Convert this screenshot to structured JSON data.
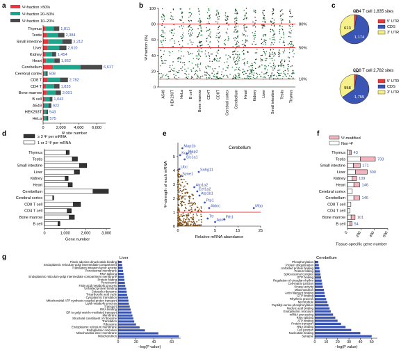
{
  "chart_data": [
    {
      "panel": "a",
      "type": "bar",
      "orientation": "horizontal",
      "stacked": true,
      "xlabel": "Ψ site number",
      "xticks": [
        0,
        2000,
        4000,
        6000
      ],
      "xlim": [
        0,
        7000
      ],
      "legend": [
        "Ψ-fraction >50%",
        "Ψ-fraction 20–50%",
        "Ψ-fraction 10–20%"
      ],
      "colors": [
        "#e8383d",
        "#1ea58c",
        "#4a4a4a"
      ],
      "categories": [
        "Thymus",
        "Testis",
        "Small intestine",
        "Liver",
        "Kidney",
        "Heart",
        "Cerebellum",
        "Cerebral cortex",
        "CD8 T",
        "CD4 T",
        "Bone marrow",
        "B cell",
        "A549",
        "HEK293T",
        "HeLa"
      ],
      "totals": [
        1811,
        2384,
        3212,
        2610,
        1454,
        1862,
        6617,
        508,
        2782,
        1835,
        2001,
        1043,
        922,
        543,
        575
      ],
      "series": [
        {
          "name": "Ψ-fraction >50%",
          "values": [
            300,
            450,
            600,
            500,
            280,
            330,
            1100,
            90,
            500,
            320,
            380,
            200,
            160,
            90,
            100
          ]
        },
        {
          "name": "Ψ-fraction 20–50%",
          "values": [
            900,
            1200,
            1550,
            1300,
            720,
            930,
            3100,
            260,
            1400,
            920,
            1000,
            520,
            460,
            280,
            290
          ]
        },
        {
          "name": "Ψ-fraction 10–20%",
          "values": [
            611,
            734,
            1062,
            810,
            454,
            602,
            2417,
            158,
            882,
            595,
            621,
            323,
            302,
            173,
            185
          ]
        }
      ]
    },
    {
      "panel": "b",
      "type": "scatter",
      "ylabel": "Ψ-fraction (%)",
      "ylim": [
        0,
        100
      ],
      "yticks": [
        0,
        20,
        40,
        60,
        80,
        100
      ],
      "reference_lines": [
        80,
        50,
        10
      ],
      "reference_labels": [
        "80%",
        "50%",
        "10%"
      ],
      "categories": [
        "A549",
        "HEK293T",
        "HeLa",
        "B cell",
        "Bone marrow",
        "CD4T",
        "CD8T",
        "Cerebral cortex",
        "Cerebellum",
        "Heart",
        "Kidney",
        "Liver",
        "Small intestine",
        "Testis",
        "Thymus"
      ]
    },
    {
      "panel": "c",
      "type": "pie",
      "charts": [
        {
          "title": "CD4 T cell 1,835 sites",
          "labels": [
            "5′ UTR",
            "CDS",
            "3′ UTR"
          ],
          "values": [
            48,
            1174,
            613
          ],
          "colors": [
            "#e8383d",
            "#3a55b4",
            "#f6ef8a"
          ]
        },
        {
          "title": "CD8 T cell 2,782 sites",
          "labels": [
            "5′ UTR",
            "CDS",
            "3′ UTR"
          ],
          "values": [
            69,
            1755,
            958
          ],
          "colors": [
            "#e8383d",
            "#3a55b4",
            "#f6ef8a"
          ]
        }
      ]
    },
    {
      "panel": "d",
      "type": "bar",
      "orientation": "horizontal",
      "stacked": true,
      "xlabel": "Gene number",
      "xticks": [
        0,
        1000,
        2000,
        3000
      ],
      "xlim": [
        0,
        3200
      ],
      "legend": [
        "≥ 3 Ψ per mRNA",
        "1 or 2 Ψ per mRNA"
      ],
      "categories": [
        "Thymus",
        "Testis",
        "Small intestine",
        "Liver",
        "Kidney",
        "Heart",
        "Cerebellum",
        "Cerebral cortex",
        "CD8 T cell",
        "CD4 T cell",
        "Bone marrow",
        "B cell"
      ],
      "series": [
        {
          "name": "1 or 2 Ψ per mRNA",
          "values": [
            1050,
            1350,
            1700,
            1450,
            1000,
            1150,
            2350,
            400,
            1400,
            1100,
            1200,
            650
          ]
        },
        {
          "name": "≥ 3 Ψ per mRNA",
          "values": [
            150,
            250,
            350,
            250,
            150,
            200,
            750,
            50,
            350,
            200,
            250,
            100
          ]
        }
      ]
    },
    {
      "panel": "e",
      "type": "scatter",
      "title": "Cerebellum",
      "xlabel": "Relative mRNA abundance",
      "ylabel": "Ψ-strength of each mRNA",
      "xticks": [
        0,
        5,
        15,
        25
      ],
      "yticks": [
        0,
        1,
        2,
        3,
        4,
        5
      ],
      "annotations": [
        {
          "label": "Map1b",
          "x": 0.6,
          "y": 5.6
        },
        {
          "label": "Kcnd2",
          "x": 0.3,
          "y": 5.1
        },
        {
          "label": "Map2",
          "x": 1.2,
          "y": 5.2
        },
        {
          "label": "Slc1a1",
          "x": 0.9,
          "y": 4.8
        },
        {
          "label": "Ubc",
          "x": 0.2,
          "y": 4.1
        },
        {
          "label": "Syne1",
          "x": 0.4,
          "y": 3.6
        },
        {
          "label": "Snhg11",
          "x": 2.8,
          "y": 3.9
        },
        {
          "label": "Atp1a2",
          "x": 2.2,
          "y": 2.8
        },
        {
          "label": "Eef1a2",
          "x": 2.6,
          "y": 2.5
        },
        {
          "label": "Atp1b1",
          "x": 2.9,
          "y": 2.2
        },
        {
          "label": "Plp1",
          "x": 3.6,
          "y": 1.7
        },
        {
          "label": "Aldoc",
          "x": 4.2,
          "y": 1.3
        },
        {
          "label": "Mbp",
          "x": 22,
          "y": 1.3
        },
        {
          "label": "Ttr",
          "x": 4.0,
          "y": 0.55
        },
        {
          "label": "Fth1",
          "x": 9.0,
          "y": 0.5
        },
        {
          "label": "Apoe",
          "x": 5.0,
          "y": 0.3
        }
      ]
    },
    {
      "panel": "f",
      "type": "bar",
      "orientation": "horizontal",
      "xlabel": "Tissue-specific gene number",
      "xticks": [
        0,
        200,
        400,
        600
      ],
      "legend": [
        "Ψ-modified",
        "Non-Ψ"
      ],
      "categories": [
        "Thymus",
        "Testis",
        "Small intestine",
        "Liver",
        "Kidney",
        "Heart",
        "Cerebral cortex",
        "Cerebellum",
        "CD8 T cell",
        "CD4 T cell",
        "Bone marrow",
        "B cell"
      ],
      "values": [
        43,
        733,
        171,
        300,
        109,
        146,
        0,
        146,
        0,
        0,
        101,
        54
      ],
      "labels": [
        "43",
        "733",
        "171",
        "300",
        "109",
        "146",
        "",
        "146",
        "",
        "",
        "101",
        "54"
      ]
    },
    {
      "panel": "g",
      "type": "bar",
      "orientation": "horizontal",
      "charts": [
        {
          "title": "Liver",
          "xlabel": "−log(P value)",
          "xticks": [
            0,
            20,
            40,
            60
          ],
          "categories": [
            "Flavin adenine dinucleotide binding",
            "Endoplasmic reticulum-golgi intermediate compartment",
            "Translation initiation factor activity",
            "Peroxisomal membrane",
            "RNA splicing",
            "Endoplasmic reticulum-golgi intermediate compartment membrane",
            "Protein folding",
            "Peroxisome",
            "Fatty acid metabolic process",
            "Unfolded protein binding",
            "Cytosolic ribosome",
            "Tricarboxylic acid cycle",
            "Cytoplasmic translation",
            "Mitochondrial ATP synthesis coupled proton transport",
            "Lipid metabolic process",
            "Transport",
            "RNA binding",
            "ER to golgi vesicle-mediated transport",
            "Membrane",
            "Structural constituent of ribosome",
            "Translation",
            "Ribosome",
            "Endoplasmic reticulum membrane",
            "Endoplasmic reticulum",
            "Mitochondrial inner membrane",
            "Mitochondrion"
          ],
          "values": [
            4,
            4.5,
            5,
            5.5,
            6,
            6.5,
            7,
            7.5,
            8,
            9,
            9.5,
            10,
            11,
            11.5,
            12,
            13,
            14,
            15,
            16,
            17,
            18,
            20,
            24,
            30,
            45,
            68
          ]
        },
        {
          "title": "Cerebellum",
          "xlabel": "−log(P value)",
          "xticks": [
            0,
            10,
            20,
            30,
            40,
            50
          ],
          "categories": [
            "Phosphorylation",
            "Protein ubiquitination",
            "Unfolded protein binding",
            "Protein folding",
            "Spliceosomal complex",
            "GTP binding",
            "Regulation of circadian rhythm",
            "Cell-matrix junction",
            "Kinase activity",
            "Mitochondrion",
            "Actin filament binding",
            "GTP binding",
            "Rhythmic process",
            "Microtubule",
            "Peptidyl-serine phosphorylation",
            "Nucleic acid binding",
            "Endoplasmic reticulum",
            "mRNA processing",
            "RNA splicing",
            "ATP binding",
            "Protein transport",
            "RNA binding",
            "Cell junction",
            "Nucleotide binding",
            "Synapse"
          ],
          "values": [
            3,
            3.5,
            4,
            4.5,
            5,
            5.5,
            6,
            6.5,
            7,
            8,
            8.5,
            9,
            10,
            11,
            12,
            13,
            14,
            16,
            18,
            20,
            23,
            27,
            32,
            40,
            50
          ]
        }
      ]
    }
  ]
}
